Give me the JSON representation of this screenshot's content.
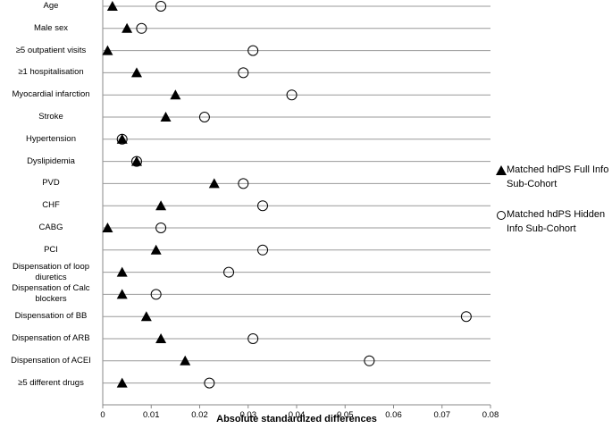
{
  "chart_data": {
    "type": "dot",
    "x_label": "Absolute standardized differences",
    "categories": [
      "Age",
      "Male sex",
      "≥5 outpatient visits",
      "≥1 hospitalisation",
      "Myocardial infarction",
      "Stroke",
      "Hypertension",
      "Dyslipidemia",
      "PVD",
      "CHF",
      "CABG",
      "PCI",
      "Dispensation of loop diuretics",
      "Dispensation of Calc blockers",
      "Dispensation of BB",
      "Dispensation of ARB",
      "Dispensation of ACEI",
      "≥5 different drugs"
    ],
    "series": [
      {
        "name": "Matched hdPS Full Info Sub-Cohort",
        "color": "#000000",
        "marker": "triangle",
        "values": [
          0.002,
          0.005,
          0.001,
          0.007,
          0.015,
          0.013,
          0.004,
          0.007,
          0.023,
          0.012,
          0.001,
          0.011,
          0.004,
          0.004,
          0.009,
          0.012,
          0.017,
          0.004
        ]
      },
      {
        "name": "Matched hdPS Hidden Info Sub-Cohort",
        "color": "#000000",
        "marker": "circle",
        "values": [
          0.012,
          0.008,
          0.031,
          0.029,
          0.039,
          0.021,
          0.004,
          0.007,
          0.029,
          0.033,
          0.012,
          0.033,
          0.026,
          0.011,
          0.075,
          0.031,
          0.055,
          0.022
        ]
      }
    ],
    "xlim": [
      0,
      0.08
    ],
    "xticks": [
      0,
      0.01,
      0.02,
      0.03,
      0.04,
      0.05,
      0.06,
      0.07,
      0.08
    ],
    "grid": true
  }
}
